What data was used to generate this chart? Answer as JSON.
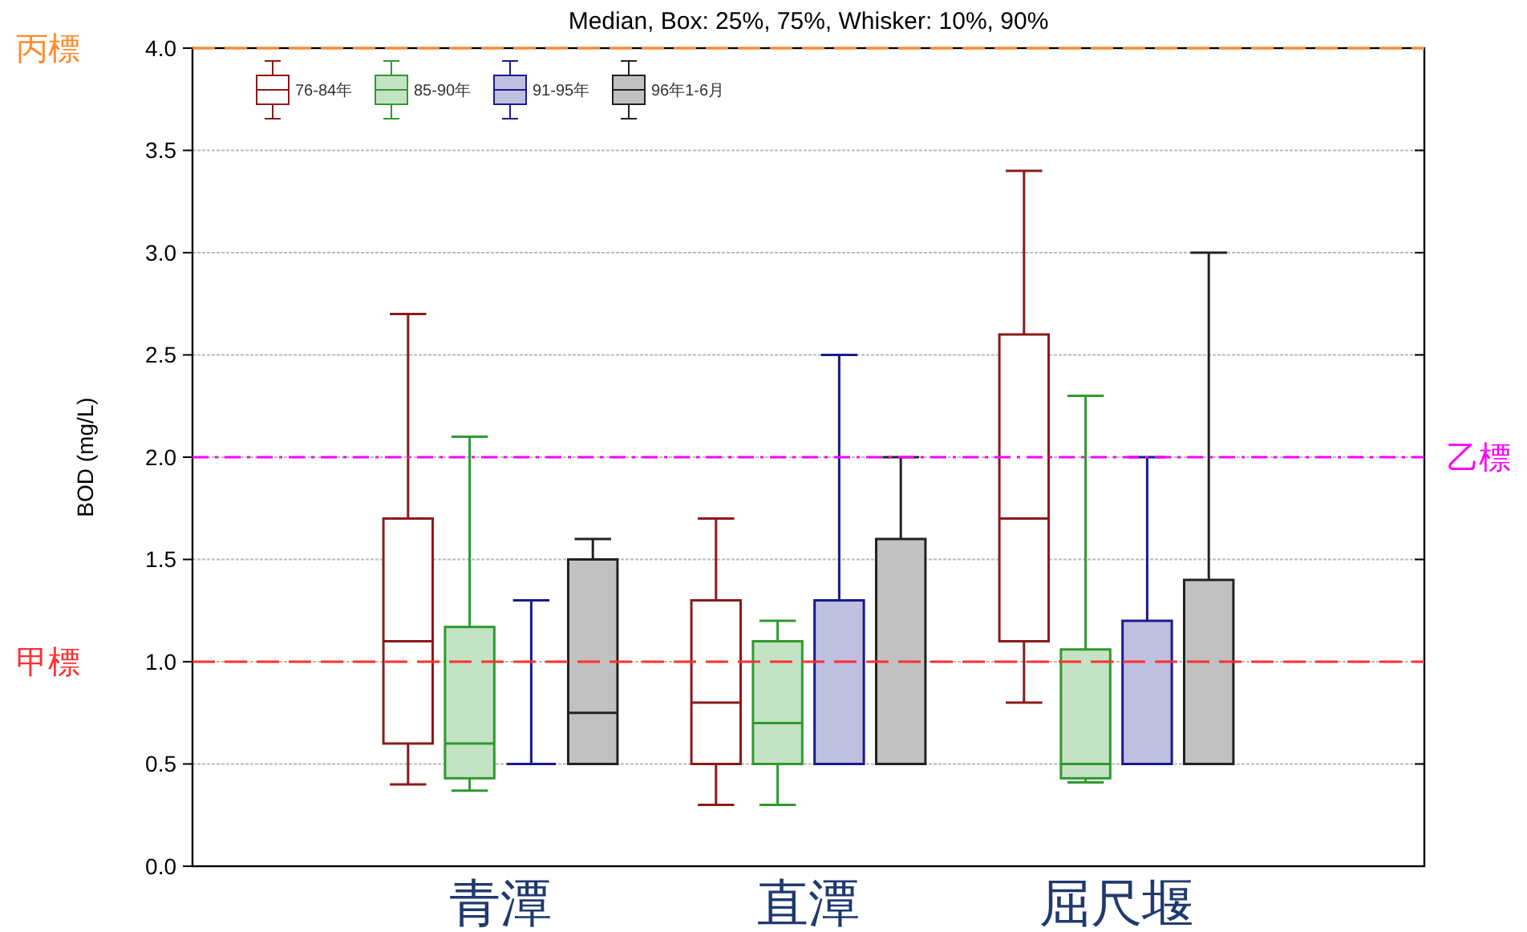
{
  "chart_data": {
    "type": "box",
    "title": "Median, Box: 25%, 75%, Whisker: 10%, 90%",
    "ylabel": "BOD (mg/L)",
    "categories": [
      "青潭",
      "直潭",
      "屈尺堰"
    ],
    "ylim": [
      0,
      4
    ],
    "yticks": [
      {
        "value": 0,
        "label": "0.0"
      },
      {
        "value": 0.5,
        "label": "0.5"
      },
      {
        "value": 1,
        "label": "1.0"
      },
      {
        "value": 1.5,
        "label": "1.5"
      },
      {
        "value": 2,
        "label": "2.0"
      },
      {
        "value": 2.5,
        "label": "2.5"
      },
      {
        "value": 3,
        "label": "3.0"
      },
      {
        "value": 3.5,
        "label": "3.5"
      },
      {
        "value": 4,
        "label": "4.0"
      }
    ],
    "grid": "y",
    "legend": "top left",
    "series": [
      {
        "name": "76-84年",
        "color": "#8b1a1a",
        "boxes": [
          {
            "low": 0.4,
            "q1": 0.6,
            "median": 1.1,
            "q3": 1.7,
            "high": 2.7
          },
          {
            "low": 0.3,
            "q1": 0.5,
            "median": 0.8,
            "q3": 1.3,
            "high": 1.7
          },
          {
            "low": 0.8,
            "q1": 1.1,
            "median": 1.7,
            "q3": 2.6,
            "high": 3.4
          }
        ]
      },
      {
        "name": "85-90年",
        "color": "#2e9a2e",
        "boxes": [
          {
            "low": 0.37,
            "q1": 0.43,
            "median": 0.6,
            "q3": 1.17,
            "high": 2.1
          },
          {
            "low": 0.3,
            "q1": 0.5,
            "median": 0.7,
            "q3": 1.1,
            "high": 1.2
          },
          {
            "low": 0.41,
            "q1": 0.43,
            "median": 0.5,
            "q3": 1.06,
            "high": 2.3
          }
        ]
      },
      {
        "name": "91-95年",
        "color": "#1a1a8c",
        "boxes": [
          {
            "low": 0.5,
            "q1": 0.5,
            "median": 0.5,
            "q3": 0.5,
            "high": 1.3
          },
          {
            "low": 0.5,
            "q1": 0.5,
            "median": 0.5,
            "q3": 1.3,
            "high": 2.5
          },
          {
            "low": 0.5,
            "q1": 0.5,
            "median": 0.5,
            "q3": 1.2,
            "high": 2.0
          }
        ]
      },
      {
        "name": "96年1-6月",
        "color": "#222222",
        "boxes": [
          {
            "low": 0.5,
            "q1": 0.5,
            "median": 0.75,
            "q3": 1.5,
            "high": 1.6
          },
          {
            "low": 0.5,
            "q1": 0.5,
            "median": 0.5,
            "q3": 1.6,
            "high": 2.0
          },
          {
            "low": 0.5,
            "q1": 0.5,
            "median": 0.5,
            "q3": 1.4,
            "high": 3.0
          }
        ]
      }
    ],
    "ref_lines": [
      {
        "axis": "y",
        "value": 4,
        "label": "丙標",
        "color": "#ff8c2a",
        "line_style": "dashed"
      },
      {
        "axis": "y",
        "value": 2,
        "label": "乙標",
        "color": "#ff00ff",
        "line_style": "dashdot"
      },
      {
        "axis": "y",
        "value": 1,
        "label": "甲標",
        "color": "#ff3030",
        "line_style": "dashed"
      }
    ]
  }
}
